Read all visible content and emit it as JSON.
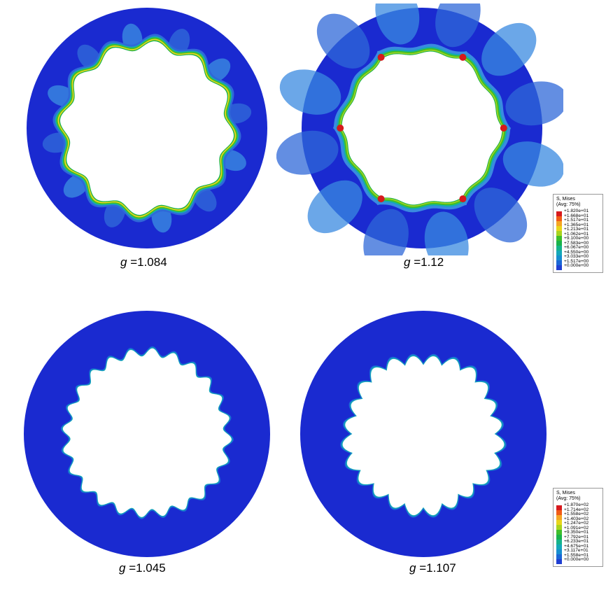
{
  "panels": [
    {
      "id": "tl",
      "label_var": "g",
      "label_text": " =1.084",
      "lobes": 12,
      "amp": 0.055,
      "pattern": "smooth"
    },
    {
      "id": "tr",
      "label_var": "g",
      "label_text": " =1.12",
      "lobes": 6,
      "amp": 0.07,
      "pattern": "cusp"
    },
    {
      "id": "bl",
      "label_var": "g",
      "label_text": " =1.045",
      "lobes": 24,
      "amp": 0.05,
      "pattern": "fine"
    },
    {
      "id": "br",
      "label_var": "g",
      "label_text": " =1.107",
      "lobes": 24,
      "amp": 0.085,
      "pattern": "spiky"
    }
  ],
  "legends": [
    {
      "title": "S, Mises",
      "subtitle": "(Avg: 75%)",
      "values": [
        "+1.820e+01",
        "+1.668e+01",
        "+1.517e+01",
        "+1.365e+01",
        "+1.213e+01",
        "+1.062e+01",
        "+9.100e+00",
        "+7.583e+00",
        "+6.067e+00",
        "+4.550e+00",
        "+3.033e+00",
        "+1.517e+00",
        "+0.000e+00"
      ]
    },
    {
      "title": "S, Mises",
      "subtitle": "(Avg: 75%)",
      "values": [
        "+1.870e+02",
        "+1.714e+02",
        "+1.558e+02",
        "+1.403e+02",
        "+1.247e+02",
        "+1.091e+02",
        "+9.350e+01",
        "+7.792e+01",
        "+6.233e+01",
        "+4.675e+01",
        "+3.117e+01",
        "+1.558e+01",
        "+0.000e+00"
      ]
    }
  ],
  "colors": {
    "scale": [
      "#d7191c",
      "#f15b15",
      "#f5a623",
      "#e8d51a",
      "#a8d41d",
      "#3fbf2a",
      "#19b34a",
      "#15b38a",
      "#14a8b8",
      "#168ecf",
      "#1a66d6",
      "#1f3fd2",
      "#1a2ad0"
    ],
    "ring": "#1a2ad0",
    "halo": "#2f68d8",
    "halo2": "#3a8ae0"
  }
}
